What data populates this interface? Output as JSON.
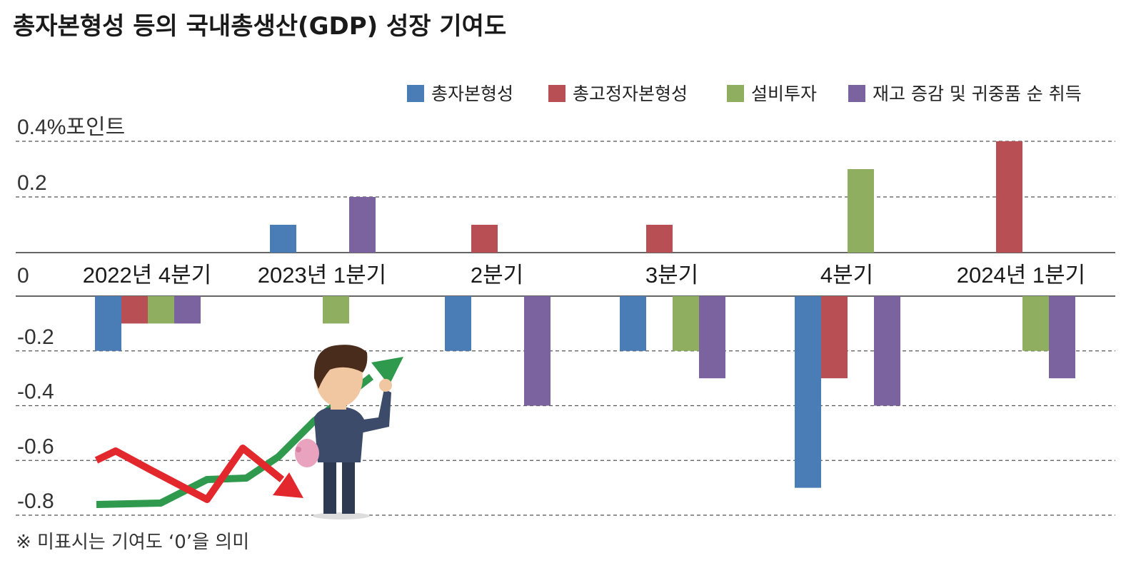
{
  "chart_data": {
    "type": "bar",
    "title": "총자본형성 등의 국내총생산(GDP) 성장 기여도",
    "ylabel": "0.4%포인트",
    "ylim": [
      -0.8,
      0.4
    ],
    "yticks": [
      {
        "value": 0.4,
        "label": "0.4%포인트"
      },
      {
        "value": 0.2,
        "label": "0.2"
      },
      {
        "value": 0,
        "label": "0"
      },
      {
        "value": -0.2,
        "label": "-0.2"
      },
      {
        "value": -0.4,
        "label": "-0.4"
      },
      {
        "value": -0.6,
        "label": "-0.6"
      },
      {
        "value": -0.8,
        "label": "-0.8"
      }
    ],
    "categories": [
      "2022년 4분기",
      "2023년 1분기",
      "2분기",
      "3분기",
      "4분기",
      "2024년 1분기"
    ],
    "series": [
      {
        "name": "총자본형성",
        "color": "#4a7db5",
        "values": [
          -0.2,
          0.1,
          -0.2,
          -0.2,
          -0.7,
          0
        ]
      },
      {
        "name": "총고정자본형성",
        "color": "#b84f55",
        "values": [
          -0.1,
          0,
          0.1,
          0.1,
          -0.3,
          0.4
        ]
      },
      {
        "name": "설비투자",
        "color": "#8fae5f",
        "values": [
          -0.1,
          -0.1,
          0,
          -0.2,
          0.3,
          -0.2
        ]
      },
      {
        "name": "재고 증감 및 귀중품 순 취득",
        "color": "#7b63a0",
        "values": [
          -0.1,
          0.2,
          -0.4,
          -0.3,
          -0.4,
          -0.3
        ]
      }
    ],
    "legend_position": "top-right",
    "note": "※ 미표시는 기여도 ‘0’을 의미"
  }
}
